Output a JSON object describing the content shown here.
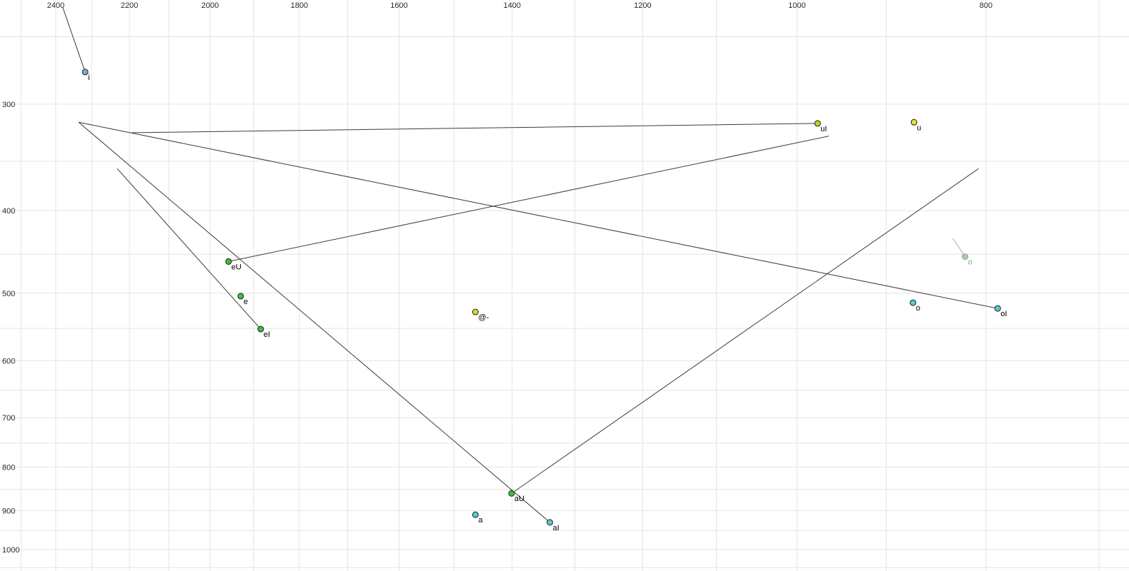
{
  "chart_data": {
    "type": "scatter",
    "description": "Vowel formant plot: F2 (Hz) on reversed log x-axis (top labels), F1 (Hz) on log y-axis (left labels), with diphthong trajectory lines",
    "x_axis": {
      "ticks": [
        2400,
        2200,
        2000,
        1800,
        1600,
        1400,
        1200,
        1000,
        800
      ],
      "scale": "log",
      "reversed": true,
      "unit": "Hz",
      "grid_step": 100,
      "grid_range": [
        700,
        2500
      ]
    },
    "y_axis": {
      "ticks": [
        300,
        400,
        500,
        600,
        700,
        800,
        900,
        1000
      ],
      "scale": "log",
      "unit": "Hz",
      "grid_step": 50,
      "grid_range": [
        250,
        1050
      ]
    },
    "points": [
      {
        "label": "i",
        "f2": 2318,
        "f1": 275,
        "color": "#74a9dc"
      },
      {
        "label": "uI",
        "f2": 976,
        "f1": 316,
        "color": "#c3d320"
      },
      {
        "label": "u",
        "f2": 871,
        "f1": 315,
        "color": "#e8e333"
      },
      {
        "label": "eU",
        "f2": 1957,
        "f1": 459,
        "color": "#3dbd3d"
      },
      {
        "label": "e",
        "f2": 1929,
        "f1": 504,
        "color": "#3dbd3d"
      },
      {
        "label": "eI",
        "f2": 1884,
        "f1": 551,
        "color": "#3dbd3d"
      },
      {
        "label": "@-",
        "f2": 1462,
        "f1": 526,
        "color": "#d9d926"
      },
      {
        "label": "o",
        "f2": 820,
        "f1": 453,
        "color": "#a8cfa8",
        "muted": true
      },
      {
        "label": "o",
        "f2": 872,
        "f1": 513,
        "color": "#52cfd4"
      },
      {
        "label": "oI",
        "f2": 789,
        "f1": 521,
        "color": "#52cfd4"
      },
      {
        "label": "aU",
        "f2": 1401,
        "f1": 859,
        "color": "#3dbd3d"
      },
      {
        "label": "a",
        "f2": 1462,
        "f1": 910,
        "color": "#52cfd4"
      },
      {
        "label": "aI",
        "f2": 1339,
        "f1": 929,
        "color": "#52cfd4"
      }
    ],
    "trajectories": [
      {
        "from": {
          "f2": 2380,
          "f1": 231
        },
        "to": {
          "f2": 2318,
          "f1": 275
        }
      },
      {
        "from": {
          "f2": 976,
          "f1": 316
        },
        "to": {
          "f2": 2193,
          "f1": 324
        }
      },
      {
        "from": {
          "f2": 789,
          "f1": 521
        },
        "to": {
          "f2": 2336,
          "f1": 315
        }
      },
      {
        "from": {
          "f2": 1957,
          "f1": 459
        },
        "to": {
          "f2": 963,
          "f1": 327
        }
      },
      {
        "from": {
          "f2": 1884,
          "f1": 551
        },
        "to": {
          "f2": 2232,
          "f1": 357
        }
      },
      {
        "from": {
          "f2": 1339,
          "f1": 929
        },
        "to": {
          "f2": 2336,
          "f1": 315
        }
      },
      {
        "from": {
          "f2": 1401,
          "f1": 859
        },
        "to": {
          "f2": 807,
          "f1": 357
        }
      },
      {
        "from": {
          "f2": 820,
          "f1": 453
        },
        "to": {
          "f2": 832,
          "f1": 431
        },
        "muted": true
      }
    ],
    "colors": {
      "background": "#ffffff",
      "grid": "#e4e4e4",
      "line": "#3c3c3c",
      "muted_line": "#b0b0b0",
      "tick_text": "#2b2b2b",
      "label_text": "#000000",
      "muted_label_text": "#9a9a9a",
      "point_stroke": "#1f1f1f",
      "muted_point_stroke": "#8aa58a"
    }
  }
}
